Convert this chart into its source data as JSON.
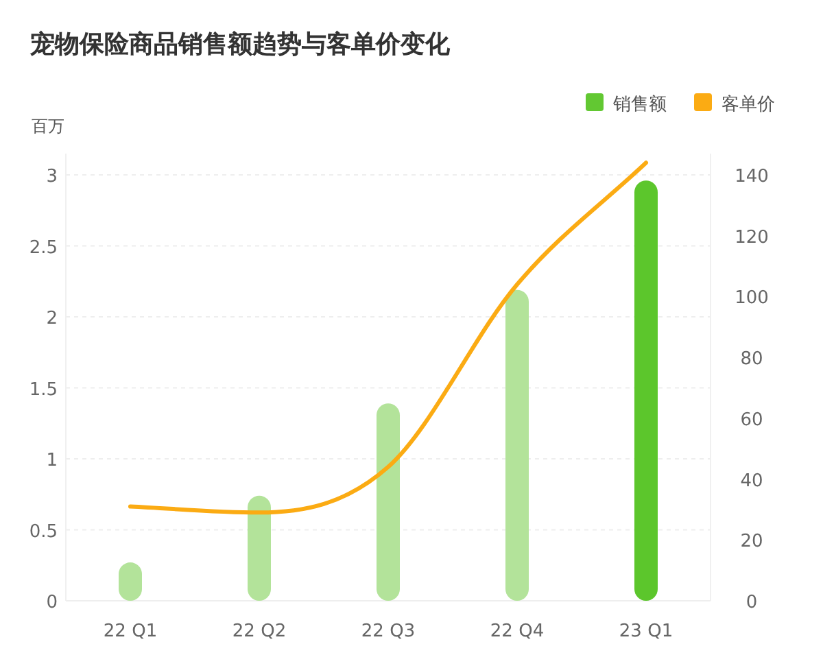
{
  "chart_data": {
    "type": "bar",
    "title": "宠物保险商品销售额趋势与客单价变化",
    "ylabel": "百万",
    "categories": [
      "22 Q1",
      "22 Q2",
      "22 Q3",
      "22 Q4",
      "23 Q1"
    ],
    "series": [
      {
        "name": "销售额",
        "color": "#62c832",
        "colors": [
          "#b3e39a",
          "#b3e39a",
          "#b3e39a",
          "#b3e39a",
          "#5cc62c"
        ],
        "values": [
          0.27,
          0.74,
          1.39,
          2.19,
          2.96
        ]
      },
      {
        "name": "客单价",
        "type": "line",
        "axis": "y2",
        "color": "#fbab13",
        "values": [
          31,
          29,
          44,
          104,
          144
        ]
      }
    ],
    "ylim": [
      0,
      3.15
    ],
    "yticks": [
      0,
      0.5,
      1,
      1.5,
      2,
      2.5,
      3
    ],
    "y2lim": [
      0,
      147
    ],
    "y2ticks": [
      0,
      20,
      40,
      60,
      80,
      100,
      120,
      140
    ],
    "grid": "y",
    "legend": "top right"
  }
}
